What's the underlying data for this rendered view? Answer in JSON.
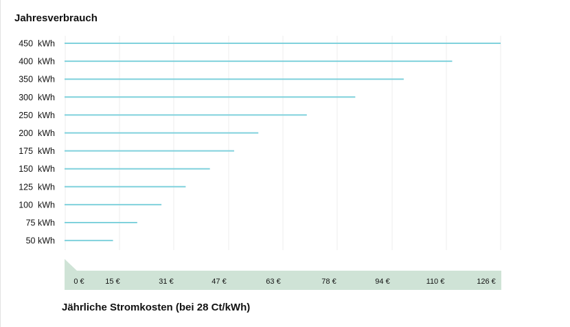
{
  "chart_data": {
    "type": "bar",
    "orientation": "horizontal",
    "title": "Jahresverbrauch",
    "xlabel": "Jährliche Stromkosten (bei 28 Ct/kWh)",
    "categories": [
      "450  kWh",
      "400  kWh",
      "350  kWh",
      "300  kWh",
      "250  kWh",
      "200  kWh",
      "175  kWh",
      "150  kWh",
      "125  kWh",
      "100  kWh",
      "75 kWh",
      "50 kWh"
    ],
    "values": [
      126,
      112,
      98,
      84,
      70,
      56,
      49,
      42,
      35,
      28,
      21,
      14
    ],
    "xticks": [
      "0 €",
      "15 €",
      "31 €",
      "47 €",
      "63 €",
      "78 €",
      "94 €",
      "110 €",
      "126 €"
    ],
    "xlim": [
      0,
      126
    ],
    "grid": true,
    "colors": {
      "bar": "#7fd1dc",
      "axis_band": "#cfe3d6",
      "grid": "#ececec"
    }
  }
}
